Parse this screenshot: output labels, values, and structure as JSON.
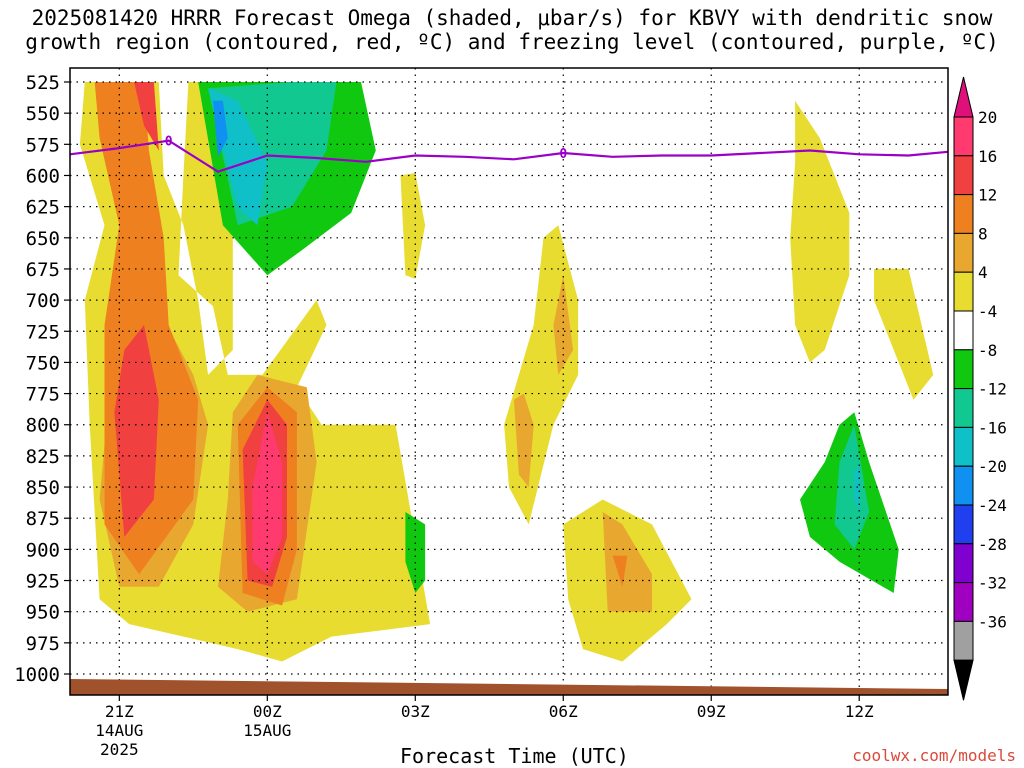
{
  "title": {
    "line1": "2025081420 HRRR Forecast Omega (shaded, μbar/s) for KBVY with dendritic snow",
    "line2": "growth region (contoured, red, ºC) and freezing level (contoured, purple, ºC)"
  },
  "xlabel": "Forecast Time (UTC)",
  "credit": "coolwx.com/models",
  "colors": {
    "freezing_line": "#9b00c8",
    "ground": "#a0522d"
  },
  "chart_data": {
    "type": "contour",
    "y_axis": {
      "label": "",
      "unit": "mb",
      "ticks": [
        525,
        550,
        575,
        600,
        625,
        650,
        675,
        700,
        725,
        750,
        775,
        800,
        825,
        850,
        875,
        900,
        925,
        950,
        975,
        1000
      ],
      "reversed": true
    },
    "x_axis": {
      "ticks": [
        {
          "hour": 21,
          "label": "21Z",
          "sub1": "14AUG",
          "sub2": "2025"
        },
        {
          "hour": 24,
          "label": "00Z",
          "sub1": "15AUG",
          "sub2": ""
        },
        {
          "hour": 27,
          "label": "03Z",
          "sub1": "",
          "sub2": ""
        },
        {
          "hour": 30,
          "label": "06Z",
          "sub1": "",
          "sub2": ""
        },
        {
          "hour": 33,
          "label": "09Z",
          "sub1": "",
          "sub2": ""
        },
        {
          "hour": 36,
          "label": "12Z",
          "sub1": "",
          "sub2": ""
        }
      ],
      "range_hours": [
        20,
        37.8
      ]
    },
    "grid": true,
    "colorbar": {
      "labels": [
        "20",
        "16",
        "12",
        "8",
        "4",
        "-4",
        "-8",
        "-12",
        "-16",
        "-20",
        "-24",
        "-28",
        "-32",
        "-36"
      ],
      "colors": [
        "#ff3a6e",
        "#f04040",
        "#ee8020",
        "#e8a830",
        "#e8dc30",
        "#ffffff",
        "#10c810",
        "#10c890",
        "#10c0c8",
        "#1090f0",
        "#2040f0",
        "#8000d0",
        "#a000c0",
        "#a0a0a0"
      ],
      "top_color": "#e0107a",
      "bottom_color": "#000000"
    },
    "freezing_level": {
      "label": "0",
      "points": [
        [
          20,
          583
        ],
        [
          21,
          578
        ],
        [
          22,
          572
        ],
        [
          23,
          597
        ],
        [
          24,
          584
        ],
        [
          25,
          586
        ],
        [
          26,
          589
        ],
        [
          27,
          584
        ],
        [
          28,
          585
        ],
        [
          29,
          587
        ],
        [
          30,
          582
        ],
        [
          31,
          585
        ],
        [
          32,
          584
        ],
        [
          33,
          584
        ],
        [
          34,
          582
        ],
        [
          35,
          580
        ],
        [
          36,
          583
        ],
        [
          37,
          584
        ],
        [
          37.8,
          581
        ]
      ]
    },
    "omega_regions": [
      {
        "color": "#e8dc30",
        "pts": [
          [
            20.3,
            525
          ],
          [
            21.8,
            525
          ],
          [
            21.9,
            600
          ],
          [
            22.3,
            640
          ],
          [
            22.6,
            700
          ],
          [
            22.8,
            760
          ],
          [
            23.3,
            740
          ],
          [
            23.3,
            525
          ],
          [
            22.4,
            525
          ],
          [
            22.3,
            600
          ],
          [
            22.2,
            680
          ],
          [
            22.9,
            705
          ],
          [
            23.2,
            760
          ],
          [
            23.9,
            760
          ],
          [
            25.0,
            700
          ],
          [
            25.2,
            720
          ],
          [
            24.6,
            770
          ],
          [
            25.1,
            800
          ],
          [
            26.6,
            800
          ],
          [
            27.3,
            960
          ],
          [
            25.3,
            970
          ],
          [
            24.3,
            990
          ],
          [
            23.4,
            980
          ],
          [
            21.2,
            960
          ],
          [
            20.6,
            940
          ],
          [
            20.4,
            800
          ],
          [
            20.3,
            700
          ],
          [
            20.7,
            640
          ],
          [
            20.2,
            575
          ]
        ]
      },
      {
        "color": "#e8dc30",
        "pts": [
          [
            26.7,
            600
          ],
          [
            27.0,
            598
          ],
          [
            27.2,
            640
          ],
          [
            27.0,
            683
          ],
          [
            26.8,
            680
          ]
        ]
      },
      {
        "color": "#e8dc30",
        "pts": [
          [
            28.8,
            800
          ],
          [
            29.4,
            720
          ],
          [
            29.6,
            650
          ],
          [
            29.9,
            640
          ],
          [
            30.3,
            700
          ],
          [
            30.3,
            760
          ],
          [
            29.8,
            800
          ],
          [
            29.3,
            880
          ],
          [
            28.9,
            850
          ]
        ]
      },
      {
        "color": "#e8dc30",
        "pts": [
          [
            30.0,
            880
          ],
          [
            30.8,
            860
          ],
          [
            31.8,
            880
          ],
          [
            32.6,
            940
          ],
          [
            32.1,
            960
          ],
          [
            31.2,
            990
          ],
          [
            30.4,
            980
          ],
          [
            30.1,
            940
          ]
        ]
      },
      {
        "color": "#e8dc30",
        "pts": [
          [
            34.7,
            540
          ],
          [
            35.2,
            570
          ],
          [
            35.8,
            630
          ],
          [
            35.8,
            680
          ],
          [
            35.3,
            740
          ],
          [
            35.0,
            750
          ],
          [
            34.7,
            720
          ],
          [
            34.6,
            650
          ],
          [
            34.7,
            590
          ]
        ]
      },
      {
        "color": "#e8dc30",
        "pts": [
          [
            36.3,
            675
          ],
          [
            37.0,
            675
          ],
          [
            37.5,
            760
          ],
          [
            37.1,
            780
          ],
          [
            36.3,
            700
          ]
        ]
      },
      {
        "color": "#e8dc30",
        "pts": [
          [
            25.6,
            850
          ],
          [
            26.0,
            880
          ],
          [
            26.0,
            940
          ],
          [
            25.8,
            960
          ],
          [
            25.6,
            940
          ]
        ]
      },
      {
        "color": "#e8a830",
        "pts": [
          [
            20.8,
            770
          ],
          [
            21.3,
            720
          ],
          [
            21.7,
            700
          ],
          [
            22.5,
            760
          ],
          [
            22.8,
            800
          ],
          [
            22.5,
            880
          ],
          [
            21.8,
            930
          ],
          [
            21.0,
            930
          ],
          [
            20.6,
            860
          ]
        ]
      },
      {
        "color": "#e8a830",
        "pts": [
          [
            23.3,
            790
          ],
          [
            23.8,
            760
          ],
          [
            24.8,
            770
          ],
          [
            25.0,
            830
          ],
          [
            24.6,
            940
          ],
          [
            23.6,
            950
          ],
          [
            23.0,
            930
          ],
          [
            23.2,
            860
          ]
        ]
      },
      {
        "color": "#e8a830",
        "pts": [
          [
            29.0,
            780
          ],
          [
            29.2,
            775
          ],
          [
            29.4,
            800
          ],
          [
            29.3,
            850
          ],
          [
            29.1,
            840
          ]
        ]
      },
      {
        "color": "#e8a830",
        "pts": [
          [
            30.8,
            870
          ],
          [
            31.2,
            880
          ],
          [
            31.8,
            920
          ],
          [
            31.8,
            950
          ],
          [
            30.9,
            950
          ]
        ]
      },
      {
        "color": "#e8a830",
        "pts": [
          [
            29.8,
            720
          ],
          [
            30.0,
            680
          ],
          [
            30.2,
            740
          ],
          [
            29.9,
            760
          ]
        ]
      },
      {
        "color": "#ee8020",
        "pts": [
          [
            20.5,
            525
          ],
          [
            21.5,
            525
          ],
          [
            21.6,
            580
          ],
          [
            21.9,
            650
          ],
          [
            22.0,
            720
          ],
          [
            22.6,
            780
          ],
          [
            22.5,
            860
          ],
          [
            21.4,
            920
          ],
          [
            20.7,
            880
          ],
          [
            20.7,
            720
          ],
          [
            21.0,
            640
          ],
          [
            20.6,
            570
          ]
        ]
      },
      {
        "color": "#ee8020",
        "pts": [
          [
            23.4,
            800
          ],
          [
            24.0,
            770
          ],
          [
            24.6,
            790
          ],
          [
            24.6,
            900
          ],
          [
            24.3,
            945
          ],
          [
            23.5,
            935
          ]
        ]
      },
      {
        "color": "#ee8020",
        "pts": [
          [
            31.0,
            905
          ],
          [
            31.3,
            905
          ],
          [
            31.2,
            930
          ]
        ]
      },
      {
        "color": "#f04040",
        "pts": [
          [
            20.9,
            790
          ],
          [
            21.1,
            740
          ],
          [
            21.5,
            720
          ],
          [
            21.8,
            780
          ],
          [
            21.7,
            860
          ],
          [
            21.1,
            890
          ]
        ]
      },
      {
        "color": "#f04040",
        "pts": [
          [
            21.3,
            525
          ],
          [
            21.7,
            525
          ],
          [
            21.8,
            580
          ],
          [
            21.5,
            560
          ]
        ]
      },
      {
        "color": "#f04040",
        "pts": [
          [
            23.5,
            820
          ],
          [
            24.0,
            780
          ],
          [
            24.4,
            800
          ],
          [
            24.4,
            890
          ],
          [
            24.1,
            930
          ],
          [
            23.6,
            925
          ]
        ]
      },
      {
        "color": "#ff3a6e",
        "pts": [
          [
            23.7,
            850
          ],
          [
            24.0,
            790
          ],
          [
            24.3,
            830
          ],
          [
            24.3,
            890
          ],
          [
            24.0,
            920
          ],
          [
            23.7,
            910
          ]
        ]
      },
      {
        "color": "#10c810",
        "pts": [
          [
            22.6,
            525
          ],
          [
            25.9,
            525
          ],
          [
            26.2,
            580
          ],
          [
            25.7,
            630
          ],
          [
            24.7,
            660
          ],
          [
            24.0,
            680
          ],
          [
            23.1,
            640
          ]
        ]
      },
      {
        "color": "#10c890",
        "pts": [
          [
            22.8,
            530
          ],
          [
            24.5,
            525
          ],
          [
            25.4,
            525
          ],
          [
            25.2,
            580
          ],
          [
            24.5,
            625
          ],
          [
            23.4,
            640
          ]
        ]
      },
      {
        "color": "#10c0c8",
        "pts": [
          [
            22.8,
            530
          ],
          [
            23.4,
            540
          ],
          [
            24.0,
            590
          ],
          [
            23.8,
            640
          ],
          [
            23.4,
            625
          ]
        ]
      },
      {
        "color": "#1090f0",
        "pts": [
          [
            22.9,
            540
          ],
          [
            23.1,
            540
          ],
          [
            23.2,
            570
          ],
          [
            23.0,
            585
          ]
        ]
      },
      {
        "color": "#10c810",
        "pts": [
          [
            26.8,
            870
          ],
          [
            27.2,
            880
          ],
          [
            27.2,
            925
          ],
          [
            27.0,
            935
          ],
          [
            26.8,
            910
          ]
        ]
      },
      {
        "color": "#10c810",
        "pts": [
          [
            34.8,
            860
          ],
          [
            35.3,
            830
          ],
          [
            35.6,
            800
          ],
          [
            35.9,
            790
          ],
          [
            36.2,
            830
          ],
          [
            36.8,
            900
          ],
          [
            36.7,
            935
          ],
          [
            35.6,
            910
          ],
          [
            35.0,
            890
          ]
        ]
      },
      {
        "color": "#10c890",
        "pts": [
          [
            35.6,
            830
          ],
          [
            35.9,
            800
          ],
          [
            36.2,
            870
          ],
          [
            35.9,
            900
          ],
          [
            35.5,
            880
          ]
        ]
      },
      {
        "color": "#10c0c8",
        "pts": [
          [
            35.9,
            840
          ],
          [
            36.0,
            830
          ],
          [
            36.0,
            870
          ],
          [
            35.9,
            860
          ]
        ]
      }
    ]
  }
}
